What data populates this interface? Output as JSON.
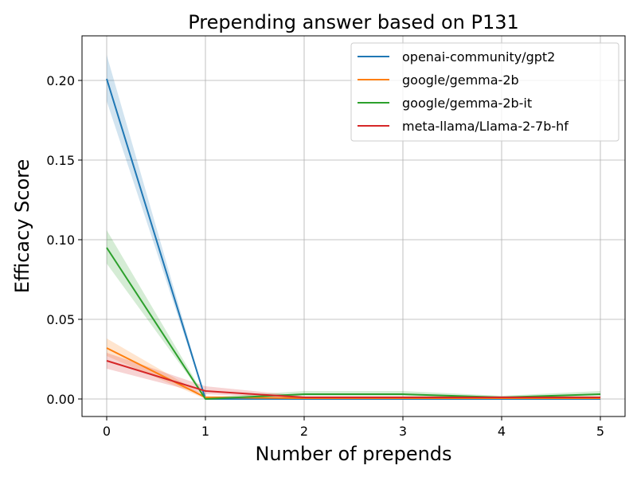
{
  "chart_data": {
    "type": "line",
    "title": "Prepending answer based on P131",
    "xlabel": "Number of prepends",
    "ylabel": "Efficacy Score",
    "x": [
      0,
      1,
      2,
      3,
      4,
      5
    ],
    "xlim": [
      -0.25,
      5.25
    ],
    "ylim": [
      -0.011,
      0.228
    ],
    "xticks": [
      0,
      1,
      2,
      3,
      4,
      5
    ],
    "yticks": [
      0.0,
      0.05,
      0.1,
      0.15,
      0.2
    ],
    "ytick_labels": [
      "0.00",
      "0.05",
      "0.10",
      "0.15",
      "0.20"
    ],
    "grid": true,
    "legend_position": "upper right",
    "series": [
      {
        "name": "openai-community/gpt2",
        "color": "#1f77b4",
        "values": [
          0.201,
          0.0,
          0.0,
          0.0,
          0.0,
          0.0
        ],
        "lower": [
          0.187,
          0.0,
          0.0,
          0.0,
          0.0,
          0.0
        ],
        "upper": [
          0.216,
          0.0005,
          0.0005,
          0.0005,
          0.0005,
          0.0005
        ]
      },
      {
        "name": "google/gemma-2b",
        "color": "#ff7f0e",
        "values": [
          0.032,
          0.001,
          0.0005,
          0.0005,
          0.0005,
          0.0005
        ],
        "lower": [
          0.027,
          0.0,
          0.0,
          0.0,
          0.0,
          0.0
        ],
        "upper": [
          0.038,
          0.002,
          0.0012,
          0.0012,
          0.0012,
          0.0012
        ]
      },
      {
        "name": "google/gemma-2b-it",
        "color": "#2ca02c",
        "values": [
          0.095,
          0.0,
          0.003,
          0.003,
          0.001,
          0.003
        ],
        "lower": [
          0.085,
          0.0,
          0.002,
          0.002,
          0.0005,
          0.002
        ],
        "upper": [
          0.106,
          0.001,
          0.005,
          0.005,
          0.002,
          0.005
        ]
      },
      {
        "name": "meta-llama/Llama-2-7b-hf",
        "color": "#d62728",
        "values": [
          0.024,
          0.005,
          0.001,
          0.001,
          0.001,
          0.001
        ],
        "lower": [
          0.019,
          0.003,
          0.0005,
          0.0005,
          0.0005,
          0.0005
        ],
        "upper": [
          0.029,
          0.008,
          0.0018,
          0.0018,
          0.0018,
          0.0018
        ]
      }
    ]
  }
}
